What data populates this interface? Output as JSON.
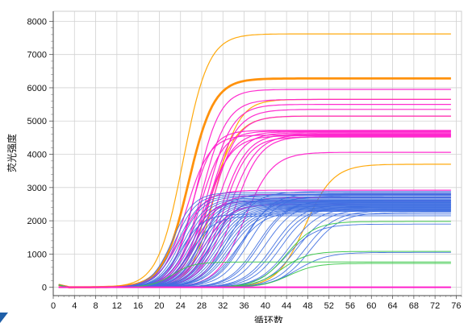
{
  "chart_data": {
    "type": "line",
    "title": "",
    "xlabel": "循环数",
    "ylabel": "荧光强度",
    "xlim": [
      0,
      77
    ],
    "ylim": [
      -250,
      8300
    ],
    "grid": true,
    "xticks": [
      0,
      4,
      8,
      12,
      16,
      20,
      24,
      28,
      32,
      36,
      40,
      44,
      48,
      52,
      56,
      60,
      64,
      68,
      72,
      76
    ],
    "yticks": [
      0,
      1000,
      2000,
      3000,
      4000,
      5000,
      6000,
      7000,
      8000
    ],
    "curve_model": "sigmoid amplification curves: plateau y_max, midpoint cycle, slope",
    "series": [
      {
        "color": "#FFA500",
        "width": 1.2,
        "curves": [
          {
            "ymax": 7620,
            "mid": 24.5,
            "k": 0.42
          },
          {
            "ymax": 5650,
            "mid": 30.5,
            "k": 0.45
          },
          {
            "ymax": 3700,
            "mid": 47.5,
            "k": 0.38
          },
          {
            "ymax": 5150,
            "mid": 29.5,
            "k": 0.4
          }
        ]
      },
      {
        "color": "#FF8C00",
        "width": 2.8,
        "curves": [
          {
            "ymax": 6280,
            "mid": 25.5,
            "k": 0.42
          }
        ]
      },
      {
        "color": "#FF22CC",
        "width": 1.2,
        "curves": [
          {
            "ymax": 5950,
            "mid": 27.0,
            "k": 0.45
          },
          {
            "ymax": 5650,
            "mid": 28.0,
            "k": 0.42
          },
          {
            "ymax": 5500,
            "mid": 29.0,
            "k": 0.42
          },
          {
            "ymax": 5350,
            "mid": 29.5,
            "k": 0.4
          },
          {
            "ymax": 5150,
            "mid": 30.0,
            "k": 0.42
          },
          {
            "ymax": 4720,
            "mid": 26.0,
            "k": 0.5
          },
          {
            "ymax": 4700,
            "mid": 27.5,
            "k": 0.45
          },
          {
            "ymax": 4680,
            "mid": 29.0,
            "k": 0.42
          },
          {
            "ymax": 4650,
            "mid": 30.5,
            "k": 0.42
          },
          {
            "ymax": 4620,
            "mid": 31.5,
            "k": 0.4
          },
          {
            "ymax": 4600,
            "mid": 33.0,
            "k": 0.38
          },
          {
            "ymax": 4580,
            "mid": 25.0,
            "k": 0.45
          },
          {
            "ymax": 4560,
            "mid": 28.5,
            "k": 0.4
          },
          {
            "ymax": 4540,
            "mid": 34.0,
            "k": 0.4
          },
          {
            "ymax": 4520,
            "mid": 32.0,
            "k": 0.42
          },
          {
            "ymax": 4060,
            "mid": 36.0,
            "k": 0.38
          },
          {
            "ymax": 2920,
            "mid": 24.0,
            "k": 0.42
          },
          {
            "ymax": 2800,
            "mid": 27.0,
            "k": 0.42
          },
          {
            "ymax": 2700,
            "mid": 30.0,
            "k": 0.4
          },
          {
            "ymax": 2600,
            "mid": 25.5,
            "k": 0.45
          },
          {
            "ymax": 2500,
            "mid": 28.5,
            "k": 0.4
          },
          {
            "ymax": 0,
            "mid": 30.0,
            "k": 0.4
          }
        ]
      },
      {
        "color": "#3F6FE0",
        "width": 0.9,
        "curves": [
          {
            "ymax": 2850,
            "mid": 22.5,
            "k": 0.5
          },
          {
            "ymax": 2800,
            "mid": 23.0,
            "k": 0.5
          },
          {
            "ymax": 2760,
            "mid": 23.5,
            "k": 0.48
          },
          {
            "ymax": 2720,
            "mid": 24.0,
            "k": 0.48
          },
          {
            "ymax": 2680,
            "mid": 24.5,
            "k": 0.46
          },
          {
            "ymax": 2650,
            "mid": 25.0,
            "k": 0.46
          },
          {
            "ymax": 2620,
            "mid": 25.5,
            "k": 0.45
          },
          {
            "ymax": 2600,
            "mid": 26.0,
            "k": 0.45
          },
          {
            "ymax": 2580,
            "mid": 26.5,
            "k": 0.44
          },
          {
            "ymax": 2560,
            "mid": 27.0,
            "k": 0.44
          },
          {
            "ymax": 2540,
            "mid": 27.5,
            "k": 0.43
          },
          {
            "ymax": 2520,
            "mid": 28.0,
            "k": 0.43
          },
          {
            "ymax": 2500,
            "mid": 28.5,
            "k": 0.42
          },
          {
            "ymax": 2480,
            "mid": 29.0,
            "k": 0.42
          },
          {
            "ymax": 2460,
            "mid": 29.5,
            "k": 0.41
          },
          {
            "ymax": 2440,
            "mid": 30.0,
            "k": 0.41
          },
          {
            "ymax": 2420,
            "mid": 30.5,
            "k": 0.4
          },
          {
            "ymax": 2400,
            "mid": 31.0,
            "k": 0.4
          },
          {
            "ymax": 2380,
            "mid": 31.5,
            "k": 0.4
          },
          {
            "ymax": 2360,
            "mid": 32.0,
            "k": 0.4
          },
          {
            "ymax": 2340,
            "mid": 32.5,
            "k": 0.39
          },
          {
            "ymax": 2320,
            "mid": 33.0,
            "k": 0.39
          },
          {
            "ymax": 2300,
            "mid": 33.5,
            "k": 0.38
          },
          {
            "ymax": 2280,
            "mid": 34.5,
            "k": 0.38
          },
          {
            "ymax": 2700,
            "mid": 35.5,
            "k": 0.38
          },
          {
            "ymax": 2750,
            "mid": 37.0,
            "k": 0.37
          },
          {
            "ymax": 2600,
            "mid": 38.5,
            "k": 0.37
          },
          {
            "ymax": 2550,
            "mid": 40.0,
            "k": 0.36
          },
          {
            "ymax": 2500,
            "mid": 41.5,
            "k": 0.36
          },
          {
            "ymax": 2450,
            "mid": 43.0,
            "k": 0.36
          },
          {
            "ymax": 2400,
            "mid": 44.5,
            "k": 0.35
          },
          {
            "ymax": 2350,
            "mid": 46.0,
            "k": 0.35
          },
          {
            "ymax": 2300,
            "mid": 47.5,
            "k": 0.35
          },
          {
            "ymax": 2250,
            "mid": 48.5,
            "k": 0.35
          },
          {
            "ymax": 2200,
            "mid": 24.0,
            "k": 0.48
          },
          {
            "ymax": 2150,
            "mid": 26.0,
            "k": 0.45
          },
          {
            "ymax": 2780,
            "mid": 28.0,
            "k": 0.44
          },
          {
            "ymax": 2680,
            "mid": 30.0,
            "k": 0.42
          },
          {
            "ymax": 2880,
            "mid": 33.0,
            "k": 0.4
          },
          {
            "ymax": 2820,
            "mid": 36.0,
            "k": 0.38
          },
          {
            "ymax": 2620,
            "mid": 39.0,
            "k": 0.37
          },
          {
            "ymax": 2420,
            "mid": 42.0,
            "k": 0.36
          },
          {
            "ymax": 1900,
            "mid": 44.0,
            "k": 0.36
          },
          {
            "ymax": 1050,
            "mid": 46.0,
            "k": 0.35
          }
        ]
      },
      {
        "color": "#3CC84A",
        "width": 1.0,
        "curves": [
          {
            "ymax": 1980,
            "mid": 44.0,
            "k": 0.38
          },
          {
            "ymax": 1080,
            "mid": 43.0,
            "k": 0.4
          },
          {
            "ymax": 720,
            "mid": 44.5,
            "k": 0.4
          },
          {
            "ymax": 760,
            "mid": 22.5,
            "k": 0.5
          }
        ]
      }
    ]
  }
}
